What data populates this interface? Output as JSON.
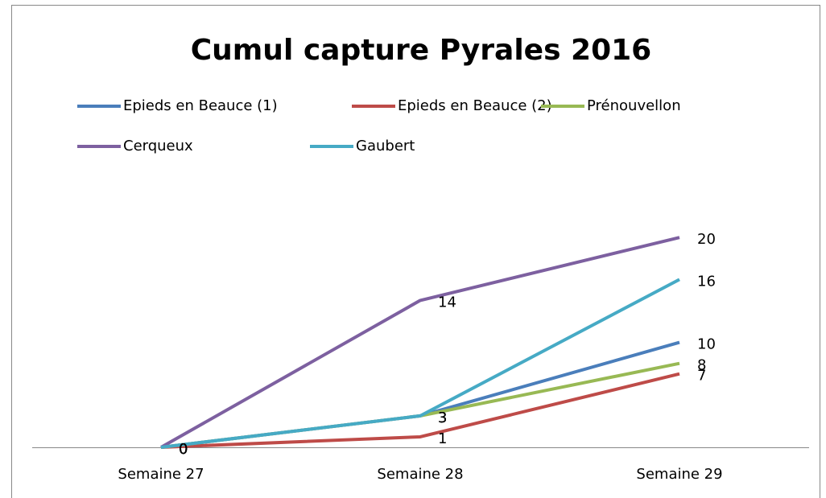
{
  "chart_data": {
    "type": "line",
    "title": "Cumul capture Pyrales 2016",
    "categories": [
      "Semaine 27",
      "Semaine 28",
      "Semaine 29"
    ],
    "series": [
      {
        "name": "Epieds en Beauce (1)",
        "color": "#4a7ebb",
        "values": [
          0,
          3,
          10
        ]
      },
      {
        "name": "Epieds en Beauce (2)",
        "color": "#be4b48",
        "values": [
          0,
          1,
          7
        ]
      },
      {
        "name": "Prénouvellon",
        "color": "#98b954",
        "values": [
          0,
          3,
          8
        ]
      },
      {
        "name": "Cerqueux",
        "color": "#7d60a0",
        "values": [
          0,
          14,
          20
        ]
      },
      {
        "name": "Gaubert",
        "color": "#46aac5",
        "values": [
          0,
          3,
          16
        ]
      }
    ],
    "ylim": [
      0,
      24
    ],
    "legend": "top",
    "data_labels": true
  }
}
